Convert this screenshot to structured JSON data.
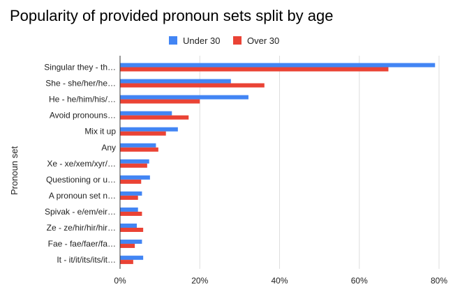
{
  "chart_data": {
    "type": "bar",
    "orientation": "horizontal",
    "title": "Popularity of provided pronoun sets split by age",
    "xlabel": "",
    "ylabel": "Pronoun set",
    "xlim": [
      0,
      80
    ],
    "x_ticks": [
      "0%",
      "20%",
      "40%",
      "60%",
      "80%"
    ],
    "x_tick_values": [
      0,
      20,
      40,
      60,
      80
    ],
    "grid": true,
    "legend_position": "top",
    "categories": [
      "Singular they - th…",
      "She - she/her/he…",
      "He - he/him/his/…",
      "Avoid pronouns…",
      "Mix it up",
      "Any",
      "Xe - xe/xem/xyr/…",
      "Questioning or u…",
      "A pronoun set n…",
      "Spivak - e/em/eir…",
      "Ze - ze/hir/hir/hir…",
      "Fae - fae/faer/fa…",
      "It - it/it/its/its/it…"
    ],
    "series": [
      {
        "name": "Under 30",
        "color": "#4285F4",
        "values": [
          79,
          27.8,
          32.2,
          13,
          14.5,
          9,
          7.3,
          7.5,
          5.5,
          4.5,
          4.2,
          5.5,
          5.8
        ]
      },
      {
        "name": "Over 30",
        "color": "#EA4335",
        "values": [
          67.3,
          36.2,
          20,
          17.2,
          11.5,
          9.6,
          6.8,
          5.3,
          4.5,
          5.5,
          5.8,
          3.7,
          3.3
        ]
      }
    ]
  }
}
